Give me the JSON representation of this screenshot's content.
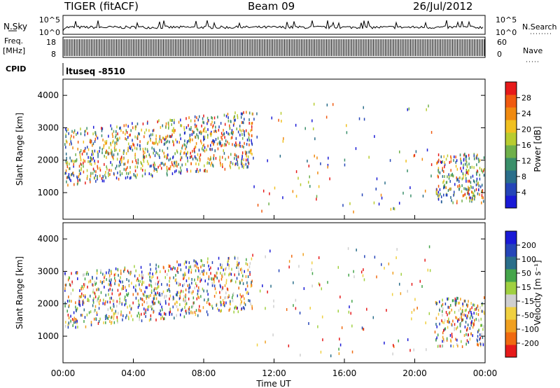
{
  "header": {
    "title_left": "TIGER (fitACF)",
    "title_center": "Beam 09",
    "title_right": "26/Jul/2012"
  },
  "colors": {
    "power_scale": [
      "#1a1ad6",
      "#2545b8",
      "#2a6e8a",
      "#3a8f6a",
      "#6fb04a",
      "#b8cc30",
      "#f0c020",
      "#f08a10",
      "#f05a10",
      "#e61a1a"
    ],
    "velocity_scale": [
      "#1a1ad6",
      "#2545b8",
      "#2a6e8a",
      "#45a54a",
      "#a0d040",
      "#cfcfcf",
      "#f0d040",
      "#f0a020",
      "#f06a10",
      "#e61a1a"
    ]
  },
  "chart_data": [
    {
      "type": "line",
      "name": "noise-panel",
      "labels_left": [
        "N.Sky",
        "10^5",
        "10^0"
      ],
      "labels_right": [
        "10^5",
        "10^0",
        "N.Search"
      ]
    },
    {
      "type": "line",
      "name": "freq-panel",
      "labels_left": [
        "Freq.",
        "[MHz]",
        "18",
        "8"
      ],
      "labels_right": [
        "60",
        "0",
        "Nave"
      ]
    },
    {
      "type": "table",
      "name": "cpid-panel",
      "label": "CPID",
      "text": "ltuseq -8510"
    },
    {
      "type": "heatmap",
      "name": "power-panel",
      "ylabel": "Slant Range [km]",
      "yticks": [
        "1000",
        "2000",
        "3000",
        "4000"
      ],
      "ylim": [
        180,
        4500
      ],
      "colorbar": {
        "label": "Power [dB]",
        "ticks": [
          "4",
          "8",
          "12",
          "16",
          "20",
          "24",
          "28"
        ],
        "range": [
          0,
          30
        ]
      }
    },
    {
      "type": "heatmap",
      "name": "velocity-panel",
      "ylabel": "Slant Range [km]",
      "yticks": [
        "1000",
        "2000",
        "3000",
        "4000"
      ],
      "ylim": [
        180,
        4500
      ],
      "xlabel": "Time UT",
      "xticks": [
        "00:00",
        "04:00",
        "08:00",
        "12:00",
        "16:00",
        "20:00",
        "00:00"
      ],
      "xlim_hours": [
        0,
        24
      ],
      "colorbar": {
        "label": "Velocity [m s⁻¹]",
        "ticks": [
          "200",
          "100",
          "50",
          "15",
          "-15",
          "-50",
          "-100",
          "-200"
        ]
      }
    }
  ]
}
